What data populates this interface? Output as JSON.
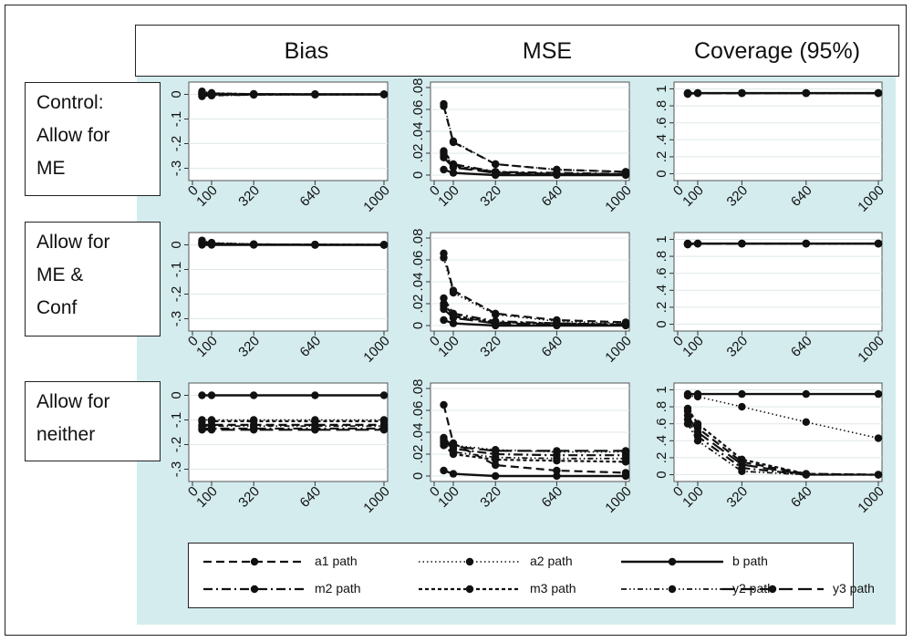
{
  "chart_data": {
    "type": "line",
    "columns": [
      "Bias",
      "MSE",
      "Coverage (95%)"
    ],
    "rows": [
      "Control: Allow for ME",
      "Allow for ME & Conf",
      "Allow for neither"
    ],
    "row_label_lines": [
      [
        "Control:",
        "Allow for",
        "ME"
      ],
      [
        "Allow for",
        "ME &",
        "Conf"
      ],
      [
        "Allow for",
        "neither"
      ]
    ],
    "x": [
      50,
      100,
      320,
      640,
      1000
    ],
    "xticks": [
      "0",
      "100",
      "320",
      "640",
      "1000"
    ],
    "yticks": {
      "Bias": [
        "0",
        "-.1",
        "-.2",
        "-.3"
      ],
      "MSE": [
        "0",
        ".02",
        ".04",
        ".06",
        ".08"
      ],
      "Coverage (95%)": [
        "0",
        ".2",
        ".4",
        ".6",
        ".8",
        "1"
      ]
    },
    "ylim": {
      "Bias": [
        -0.35,
        0.05
      ],
      "MSE": [
        -0.005,
        0.085
      ],
      "Coverage (95%)": [
        -0.08,
        1.08
      ]
    },
    "legend": [
      "a1 path",
      "a2 path",
      "b path",
      "m2 path",
      "m3 path",
      "y2 path",
      "y3 path"
    ],
    "panels": [
      {
        "row": 0,
        "col": 0,
        "series": [
          {
            "name": "a1 path",
            "values": [
              0.005,
              0.003,
              0.001,
              0.0,
              0.0
            ]
          },
          {
            "name": "a2 path",
            "values": [
              0.012,
              0.006,
              0.002,
              0.001,
              0.0
            ]
          },
          {
            "name": "b path",
            "values": [
              0.0,
              0.0,
              0.0,
              0.0,
              0.0
            ]
          },
          {
            "name": "m2 path",
            "values": [
              -0.004,
              -0.003,
              -0.001,
              0.0,
              0.0
            ]
          },
          {
            "name": "m3 path",
            "values": [
              0.008,
              0.004,
              0.001,
              0.0,
              0.0
            ]
          },
          {
            "name": "y2 path",
            "values": [
              -0.008,
              -0.005,
              -0.002,
              -0.001,
              0.0
            ]
          },
          {
            "name": "y3 path",
            "values": [
              0.003,
              0.002,
              0.001,
              0.0,
              0.0
            ]
          }
        ]
      },
      {
        "row": 0,
        "col": 1,
        "series": [
          {
            "name": "a1 path",
            "values": [
              0.063,
              0.03,
              0.01,
              0.005,
              0.003
            ]
          },
          {
            "name": "a2 path",
            "values": [
              0.065,
              0.031,
              0.01,
              0.005,
              0.003
            ]
          },
          {
            "name": "b path",
            "values": [
              0.005,
              0.002,
              0.0,
              0.0,
              0.0
            ]
          },
          {
            "name": "m2 path",
            "values": [
              0.022,
              0.01,
              0.003,
              0.002,
              0.001
            ]
          },
          {
            "name": "m3 path",
            "values": [
              0.018,
              0.008,
              0.003,
              0.001,
              0.001
            ]
          },
          {
            "name": "y2 path",
            "values": [
              0.02,
              0.009,
              0.003,
              0.001,
              0.001
            ]
          },
          {
            "name": "y3 path",
            "values": [
              0.016,
              0.007,
              0.002,
              0.001,
              0.001
            ]
          }
        ]
      },
      {
        "row": 0,
        "col": 2,
        "series": [
          {
            "name": "a1 path",
            "values": [
              0.94,
              0.95,
              0.95,
              0.95,
              0.95
            ]
          },
          {
            "name": "a2 path",
            "values": [
              0.95,
              0.95,
              0.95,
              0.95,
              0.95
            ]
          },
          {
            "name": "b path",
            "values": [
              0.95,
              0.95,
              0.95,
              0.95,
              0.95
            ]
          },
          {
            "name": "m2 path",
            "values": [
              0.94,
              0.95,
              0.95,
              0.95,
              0.95
            ]
          },
          {
            "name": "m3 path",
            "values": [
              0.95,
              0.95,
              0.95,
              0.95,
              0.95
            ]
          },
          {
            "name": "y2 path",
            "values": [
              0.94,
              0.95,
              0.95,
              0.95,
              0.95
            ]
          },
          {
            "name": "y3 path",
            "values": [
              0.95,
              0.95,
              0.95,
              0.95,
              0.95
            ]
          }
        ]
      },
      {
        "row": 1,
        "col": 0,
        "series": [
          {
            "name": "a1 path",
            "values": [
              0.012,
              0.006,
              0.002,
              0.001,
              0.0
            ]
          },
          {
            "name": "a2 path",
            "values": [
              0.018,
              0.009,
              0.003,
              0.001,
              0.0
            ]
          },
          {
            "name": "b path",
            "values": [
              0.0,
              0.0,
              0.0,
              0.0,
              0.0
            ]
          },
          {
            "name": "m2 path",
            "values": [
              0.008,
              0.004,
              0.001,
              0.0,
              0.0
            ]
          },
          {
            "name": "m3 path",
            "values": [
              0.01,
              0.005,
              0.002,
              0.001,
              0.0
            ]
          },
          {
            "name": "y2 path",
            "values": [
              0.006,
              0.003,
              0.001,
              0.0,
              0.0
            ]
          },
          {
            "name": "y3 path",
            "values": [
              0.004,
              0.002,
              0.001,
              0.0,
              0.0
            ]
          }
        ]
      },
      {
        "row": 1,
        "col": 1,
        "series": [
          {
            "name": "a1 path",
            "values": [
              0.066,
              0.032,
              0.011,
              0.005,
              0.003
            ]
          },
          {
            "name": "a2 path",
            "values": [
              0.062,
              0.03,
              0.01,
              0.004,
              0.002
            ]
          },
          {
            "name": "b path",
            "values": [
              0.005,
              0.002,
              0.0,
              0.0,
              0.0
            ]
          },
          {
            "name": "m2 path",
            "values": [
              0.025,
              0.011,
              0.004,
              0.002,
              0.001
            ]
          },
          {
            "name": "m3 path",
            "values": [
              0.02,
              0.009,
              0.003,
              0.002,
              0.001
            ]
          },
          {
            "name": "y2 path",
            "values": [
              0.018,
              0.008,
              0.003,
              0.001,
              0.001
            ]
          },
          {
            "name": "y3 path",
            "values": [
              0.015,
              0.007,
              0.002,
              0.001,
              0.001
            ]
          }
        ]
      },
      {
        "row": 1,
        "col": 2,
        "series": [
          {
            "name": "a1 path",
            "values": [
              0.94,
              0.95,
              0.95,
              0.95,
              0.95
            ]
          },
          {
            "name": "a2 path",
            "values": [
              0.94,
              0.95,
              0.95,
              0.95,
              0.95
            ]
          },
          {
            "name": "b path",
            "values": [
              0.95,
              0.95,
              0.95,
              0.95,
              0.95
            ]
          },
          {
            "name": "m2 path",
            "values": [
              0.95,
              0.95,
              0.95,
              0.95,
              0.95
            ]
          },
          {
            "name": "m3 path",
            "values": [
              0.94,
              0.95,
              0.95,
              0.95,
              0.95
            ]
          },
          {
            "name": "y2 path",
            "values": [
              0.95,
              0.95,
              0.95,
              0.95,
              0.95
            ]
          },
          {
            "name": "y3 path",
            "values": [
              0.94,
              0.95,
              0.95,
              0.95,
              0.95
            ]
          }
        ]
      },
      {
        "row": 2,
        "col": 0,
        "series": [
          {
            "name": "a1 path",
            "values": [
              -0.12,
              -0.12,
              -0.12,
              -0.12,
              -0.12
            ]
          },
          {
            "name": "a2 path",
            "values": [
              -0.1,
              -0.1,
              -0.1,
              -0.1,
              -0.1
            ]
          },
          {
            "name": "b path",
            "values": [
              0.0,
              0.0,
              0.0,
              0.0,
              0.0
            ]
          },
          {
            "name": "m2 path",
            "values": [
              -0.135,
              -0.135,
              -0.135,
              -0.135,
              -0.135
            ]
          },
          {
            "name": "m3 path",
            "values": [
              -0.105,
              -0.105,
              -0.105,
              -0.105,
              -0.105
            ]
          },
          {
            "name": "y2 path",
            "values": [
              -0.125,
              -0.125,
              -0.125,
              -0.125,
              -0.125
            ]
          },
          {
            "name": "y3 path",
            "values": [
              -0.14,
              -0.14,
              -0.14,
              -0.14,
              -0.14
            ]
          }
        ]
      },
      {
        "row": 2,
        "col": 1,
        "series": [
          {
            "name": "a1 path",
            "values": [
              0.065,
              0.03,
              0.01,
              0.005,
              0.003
            ]
          },
          {
            "name": "a2 path",
            "values": [
              0.035,
              0.028,
              0.024,
              0.022,
              0.022
            ]
          },
          {
            "name": "b path",
            "values": [
              0.005,
              0.002,
              0.0,
              0.0,
              0.0
            ]
          },
          {
            "name": "m2 path",
            "values": [
              0.032,
              0.025,
              0.02,
              0.019,
              0.019
            ]
          },
          {
            "name": "m3 path",
            "values": [
              0.028,
              0.02,
              0.015,
              0.014,
              0.013
            ]
          },
          {
            "name": "y2 path",
            "values": [
              0.03,
              0.022,
              0.017,
              0.016,
              0.016
            ]
          },
          {
            "name": "y3 path",
            "values": [
              0.034,
              0.027,
              0.023,
              0.023,
              0.023
            ]
          }
        ]
      },
      {
        "row": 2,
        "col": 2,
        "series": [
          {
            "name": "a1 path",
            "values": [
              0.75,
              0.55,
              0.15,
              0.01,
              0.0
            ]
          },
          {
            "name": "a2 path",
            "values": [
              0.93,
              0.92,
              0.8,
              0.62,
              0.43
            ]
          },
          {
            "name": "b path",
            "values": [
              0.95,
              0.95,
              0.95,
              0.95,
              0.95
            ]
          },
          {
            "name": "m2 path",
            "values": [
              0.65,
              0.45,
              0.08,
              0.0,
              0.0
            ]
          },
          {
            "name": "m3 path",
            "values": [
              0.78,
              0.6,
              0.18,
              0.01,
              0.0
            ]
          },
          {
            "name": "y2 path",
            "values": [
              0.6,
              0.4,
              0.04,
              0.0,
              0.0
            ]
          },
          {
            "name": "y3 path",
            "values": [
              0.7,
              0.5,
              0.12,
              0.0,
              0.0
            ]
          }
        ]
      }
    ]
  },
  "colors": {
    "panel_bg": "#d4ecee",
    "plot_bg": "#ffffff",
    "grid": "#dfe8ea",
    "line": "#111111"
  }
}
